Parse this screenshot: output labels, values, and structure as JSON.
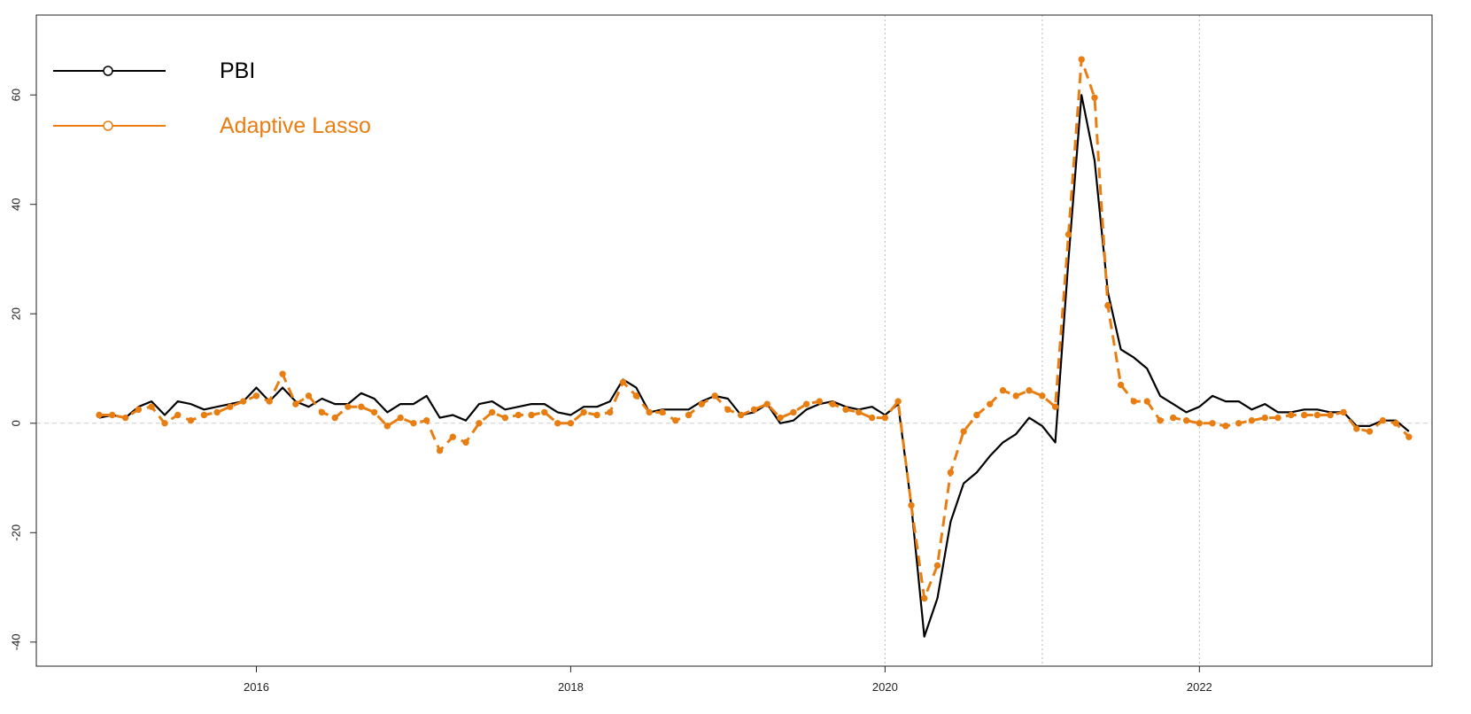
{
  "chart_data": {
    "type": "line",
    "x": [
      2015,
      2015.083,
      2015.167,
      2015.25,
      2015.333,
      2015.417,
      2015.5,
      2015.583,
      2015.667,
      2015.75,
      2015.833,
      2015.917,
      2016,
      2016.083,
      2016.167,
      2016.25,
      2016.333,
      2016.417,
      2016.5,
      2016.583,
      2016.667,
      2016.75,
      2016.833,
      2016.917,
      2017,
      2017.083,
      2017.167,
      2017.25,
      2017.333,
      2017.417,
      2017.5,
      2017.583,
      2017.667,
      2017.75,
      2017.833,
      2017.917,
      2018,
      2018.083,
      2018.167,
      2018.25,
      2018.333,
      2018.417,
      2018.5,
      2018.583,
      2018.667,
      2018.75,
      2018.833,
      2018.917,
      2019,
      2019.083,
      2019.167,
      2019.25,
      2019.333,
      2019.417,
      2019.5,
      2019.583,
      2019.667,
      2019.75,
      2019.833,
      2019.917,
      2020,
      2020.083,
      2020.167,
      2020.25,
      2020.333,
      2020.417,
      2020.5,
      2020.583,
      2020.667,
      2020.75,
      2020.833,
      2020.917,
      2021,
      2021.083,
      2021.167,
      2021.25,
      2021.333,
      2021.417,
      2021.5,
      2021.583,
      2021.667,
      2021.75,
      2021.833,
      2021.917,
      2022,
      2022.083,
      2022.167,
      2022.25,
      2022.333,
      2022.417,
      2022.5,
      2022.583,
      2022.667,
      2022.75,
      2022.833,
      2022.917,
      2023,
      2023.083,
      2023.167,
      2023.25,
      2023.333
    ],
    "series": [
      {
        "name": "PBI",
        "color": "#000000",
        "linestyle": "solid",
        "markers": false,
        "values": [
          1,
          1.5,
          1,
          3,
          4,
          1.5,
          4,
          3.5,
          2.5,
          3,
          3.5,
          4,
          6.5,
          4,
          6.5,
          4,
          3,
          4.5,
          3.5,
          3.5,
          5.5,
          4.5,
          2,
          3.5,
          3.5,
          5,
          1,
          1.5,
          0.5,
          3.5,
          4,
          2.5,
          3,
          3.5,
          3.5,
          2,
          1.5,
          3,
          3,
          4,
          8,
          6.5,
          2,
          2.5,
          2.5,
          2.5,
          4,
          5,
          4.5,
          1.5,
          2,
          3.5,
          0,
          0.5,
          2.5,
          3.5,
          4,
          3,
          2.5,
          3,
          1.5,
          3.5,
          -15,
          -39,
          -32,
          -18,
          -11,
          -9,
          -6,
          -3.5,
          -2,
          1,
          -0.5,
          -3.5,
          30,
          60,
          48,
          24,
          13.5,
          12,
          10,
          5,
          3.5,
          2,
          3,
          5,
          4,
          4,
          2.5,
          3.5,
          2,
          2,
          2.5,
          2.5,
          2,
          2,
          -0.5,
          -0.5,
          0.5,
          0.5,
          -1.5
        ]
      },
      {
        "name": "Adaptive Lasso",
        "color": "#e87e12",
        "linestyle": "dashed",
        "markers": true,
        "values": [
          1.5,
          1.5,
          1,
          2.5,
          3,
          0,
          1.5,
          0.5,
          1.5,
          2,
          3,
          4,
          5,
          4,
          9,
          3.5,
          5,
          2,
          1,
          3,
          3,
          2,
          -0.5,
          1,
          0,
          0.5,
          -5,
          -2.5,
          -3.5,
          0,
          2,
          1,
          1.5,
          1.5,
          2,
          0,
          0,
          2,
          1.5,
          2,
          7.5,
          5,
          2,
          2,
          0.5,
          1.5,
          3.5,
          5,
          2.5,
          1.5,
          2.5,
          3.5,
          1,
          2,
          3.5,
          4,
          3.5,
          2.5,
          2,
          1,
          1,
          4,
          -15,
          -32,
          -26,
          -9,
          -1.5,
          1.5,
          3.5,
          6,
          5,
          6,
          5,
          3,
          34.5,
          66.5,
          59.5,
          21.5,
          7,
          4,
          4,
          0.5,
          1,
          0.5,
          0,
          0,
          -0.5,
          0,
          0.5,
          1,
          1,
          1.5,
          1.5,
          1.5,
          1.5,
          2,
          -1,
          -1.5,
          0.5,
          0,
          -2.5
        ]
      }
    ],
    "xlim": [
      2014.6,
      2023.48
    ],
    "xticks": [
      2016,
      2018,
      2020,
      2022
    ],
    "ylim": [
      -44.4,
      74.6
    ],
    "yticks": [
      -40,
      -20,
      0,
      20,
      40,
      60
    ],
    "vlines": [
      2020,
      2021,
      2022
    ],
    "hline": 0,
    "legend": "top-left"
  }
}
